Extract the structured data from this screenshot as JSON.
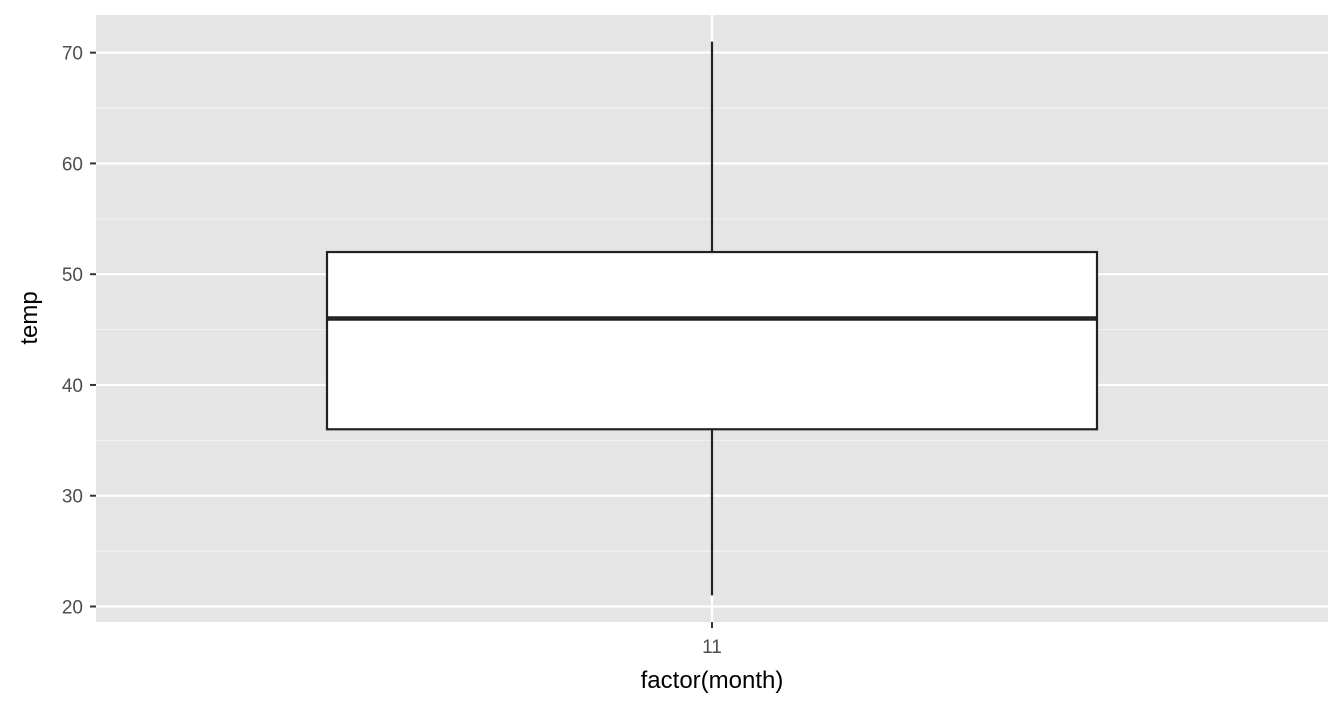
{
  "chart_data": {
    "type": "boxplot",
    "xlabel": "factor(month)",
    "ylabel": "temp",
    "categories": [
      "11"
    ],
    "boxes": [
      {
        "category": "11",
        "min": 21,
        "q1": 36,
        "median": 46,
        "q3": 52,
        "max": 71
      }
    ],
    "ylim": [
      18.6,
      73.4
    ],
    "yticks": [
      20,
      30,
      40,
      50,
      60,
      70
    ],
    "ytick_labels": [
      "20",
      "30",
      "40",
      "50",
      "60",
      "70"
    ],
    "grid": true,
    "legend": "none",
    "colors": {
      "panel_background": "#e5e5e5",
      "grid_major": "#ffffff",
      "grid_minor": "#f2f2f2",
      "box_fill": "#ffffff",
      "box_stroke": "#222222",
      "tick_text": "#4d4d4d",
      "tick_mark": "#333333",
      "axis_title": "#000000"
    }
  }
}
